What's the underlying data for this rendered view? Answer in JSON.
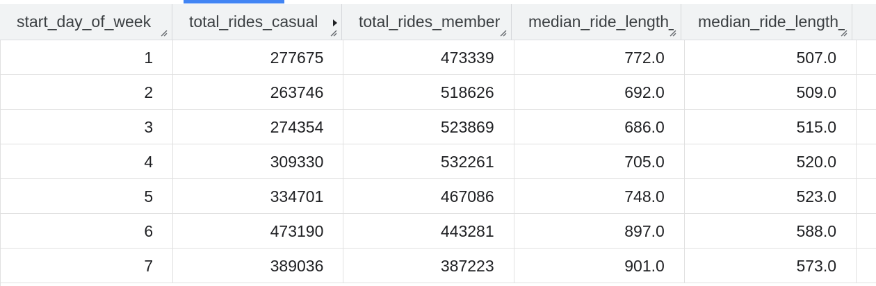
{
  "table": {
    "columns": [
      {
        "label": "start_day_of_week",
        "sorted": false
      },
      {
        "label": "total_rides_casual",
        "sorted": true
      },
      {
        "label": "total_rides_member",
        "sorted": false
      },
      {
        "label": "median_ride_length_",
        "sorted": false
      },
      {
        "label": "median_ride_length_",
        "sorted": false
      }
    ],
    "rows": [
      [
        "1",
        "277675",
        "473339",
        "772.0",
        "507.0"
      ],
      [
        "2",
        "263746",
        "518626",
        "692.0",
        "509.0"
      ],
      [
        "3",
        "274354",
        "523869",
        "686.0",
        "515.0"
      ],
      [
        "4",
        "309330",
        "532261",
        "705.0",
        "520.0"
      ],
      [
        "5",
        "334701",
        "467086",
        "748.0",
        "523.0"
      ],
      [
        "6",
        "473190",
        "443281",
        "897.0",
        "588.0"
      ],
      [
        "7",
        "389036",
        "387223",
        "901.0",
        "573.0"
      ]
    ]
  },
  "colors": {
    "header_bg": "#f1f3f4",
    "accent": "#4285f4",
    "grid_line": "#e0e0e0"
  },
  "icons": {
    "resize": "column-resize-handle-icon",
    "sort": "sort-indicator-icon"
  }
}
